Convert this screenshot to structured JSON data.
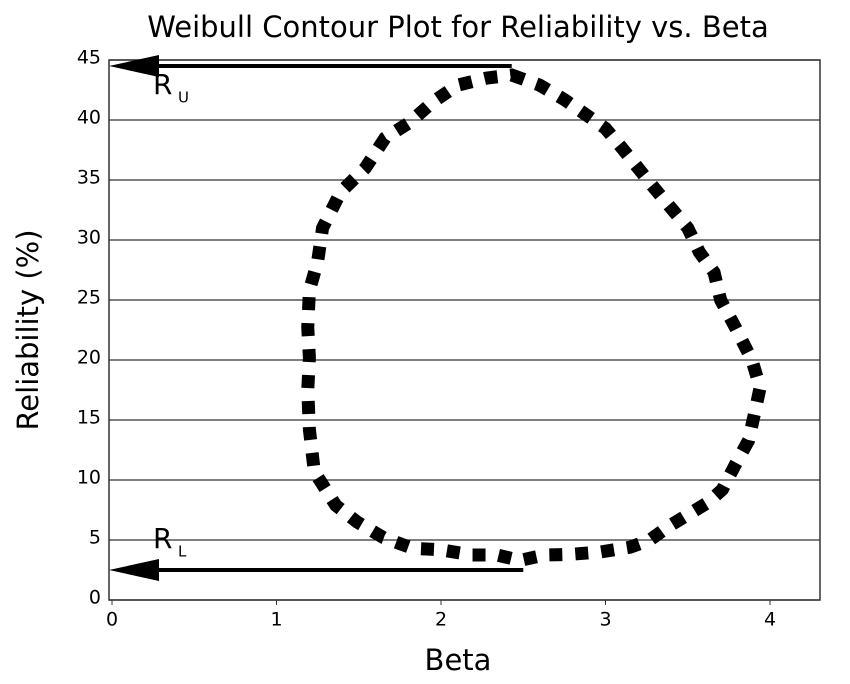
{
  "chart_data": {
    "type": "contour",
    "title": "Weibull Contour Plot for Reliability vs. Beta",
    "x_label": "Beta",
    "y_label": "Reliability (%)",
    "xlim": [
      0,
      4.3
    ],
    "ylim": [
      0,
      45
    ],
    "xticks": [
      0,
      1,
      2,
      3,
      4
    ],
    "yticks": [
      0,
      5,
      10,
      15,
      20,
      25,
      30,
      35,
      40,
      45
    ],
    "grid": true,
    "color": "#000000",
    "series": [
      {
        "x": [
          2.43,
          2.6,
          2.75,
          3.0,
          3.11,
          3.21,
          3.28,
          3.5,
          3.57,
          3.66,
          3.7,
          3.79,
          3.89,
          3.94,
          3.91,
          3.87,
          3.79,
          3.71,
          3.62,
          3.5,
          3.38,
          3.27,
          3.15,
          2.97,
          2.78,
          2.63,
          2.48,
          2.34,
          2.19,
          1.99,
          1.83,
          1.65,
          1.49,
          1.36,
          1.23,
          1.2,
          1.19,
          1.2,
          1.19,
          1.2,
          1.25,
          1.28,
          1.39,
          1.54,
          1.66,
          1.81,
          1.95,
          2.1,
          2.28
        ],
        "values": [
          43.75,
          42.9,
          41.7,
          39.3,
          37.5,
          35.8,
          34.6,
          31,
          29,
          27.3,
          25,
          22.7,
          20,
          17.7,
          15.8,
          13.3,
          11.3,
          9.2,
          8.1,
          7.1,
          6.1,
          5,
          4.4,
          4,
          3.8,
          3.75,
          3.3,
          3.75,
          3.75,
          4.2,
          4.3,
          5.2,
          6.5,
          7.9,
          10.7,
          14.2,
          17.5,
          20.2,
          22.7,
          25.8,
          28.2,
          31,
          34,
          36,
          38.5,
          39.8,
          41.5,
          42.9,
          43.5
        ]
      }
    ],
    "annotations": [
      {
        "label": "R",
        "subscript": "U",
        "value": 44.5,
        "beta": 2.43
      },
      {
        "label": "R",
        "subscript": "L",
        "value": 2.5,
        "beta": 2.5
      }
    ]
  }
}
